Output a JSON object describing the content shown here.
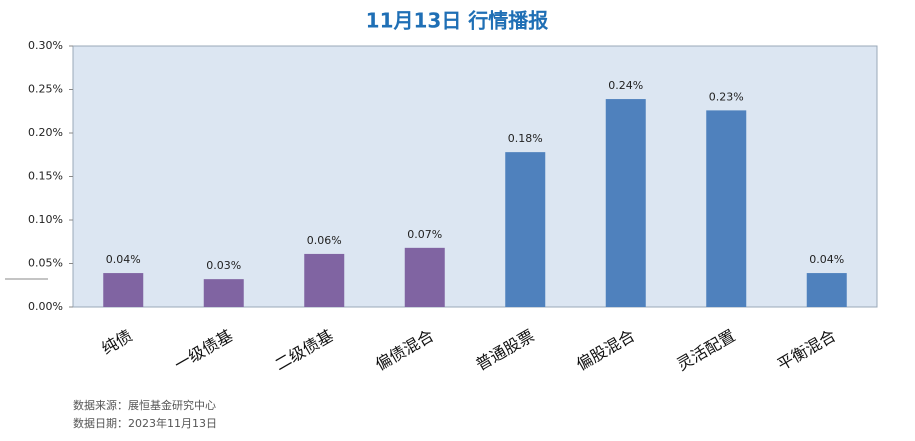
{
  "chart_data": {
    "type": "bar",
    "title": "11月13日  行情播报",
    "categories": [
      "纯债",
      "一级债基",
      "二级债基",
      "偏债混合",
      "普通股票",
      "偏股混合",
      "灵活配置",
      "平衡混合"
    ],
    "values": [
      0.039,
      0.032,
      0.061,
      0.068,
      0.178,
      0.239,
      0.226,
      0.039
    ],
    "value_labels": [
      "0.04%",
      "0.03%",
      "0.06%",
      "0.07%",
      "0.18%",
      "0.24%",
      "0.23%",
      "0.04%"
    ],
    "colors": [
      "#8064a2",
      "#8064a2",
      "#8064a2",
      "#8064a2",
      "#4f81bd",
      "#4f81bd",
      "#4f81bd",
      "#4f81bd"
    ],
    "ylim": [
      0,
      0.3
    ],
    "yticks": [
      {
        "value": 0,
        "label": "0.00%"
      },
      {
        "value": 0.05,
        "label": "0.05%"
      },
      {
        "value": 0.1,
        "label": "0.10%"
      },
      {
        "value": 0.15,
        "label": "0.15%"
      },
      {
        "value": 0.2,
        "label": "0.20%"
      },
      {
        "value": 0.25,
        "label": "0.25%"
      },
      {
        "value": 0.3,
        "label": "0.30%"
      }
    ],
    "notes": [
      "数据来源：展恒基金研究中心",
      "数据日期：2023年11月13日"
    ]
  }
}
